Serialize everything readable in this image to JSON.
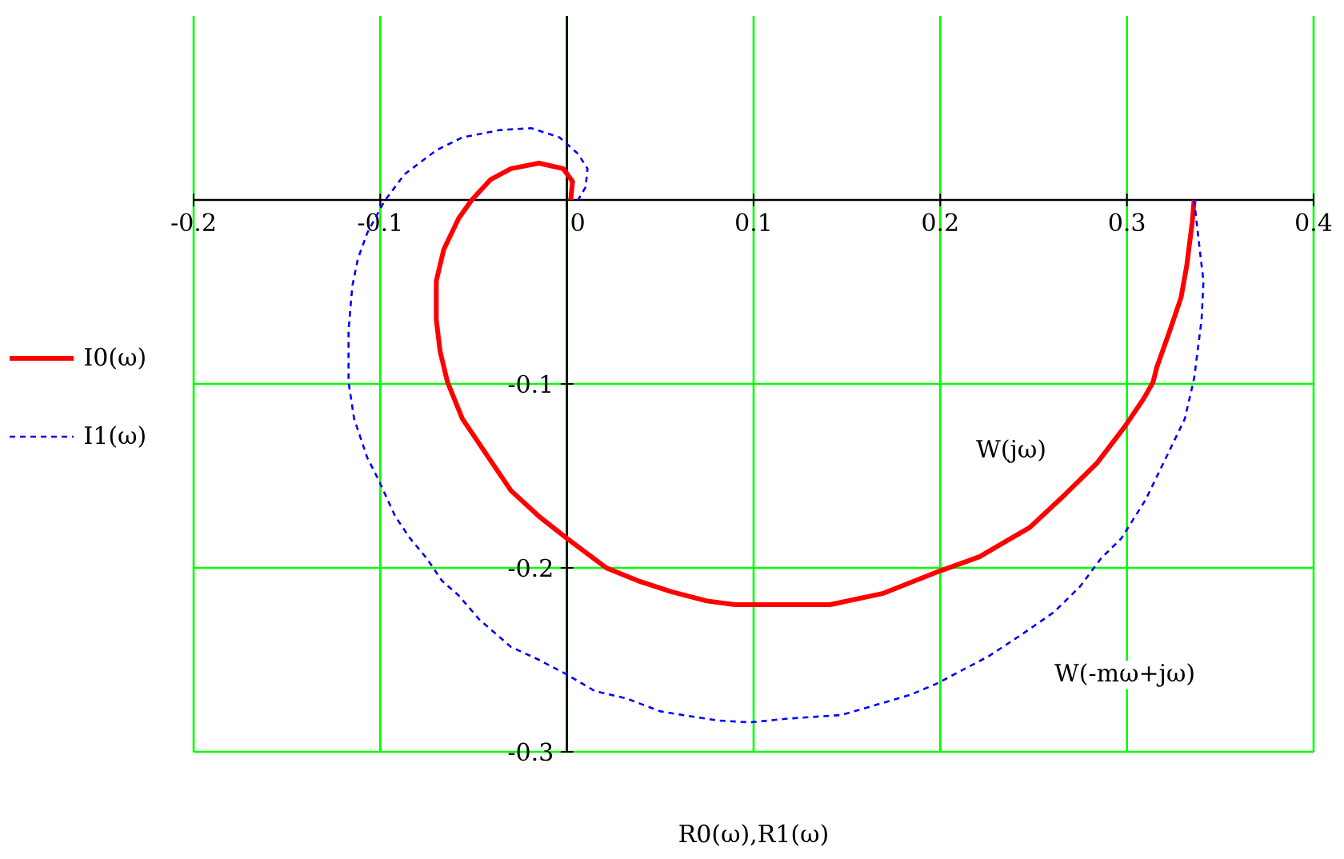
{
  "chart_data": {
    "type": "line",
    "xlabel": "R0(ω),R1(ω)",
    "xlim": [
      -0.2,
      0.4
    ],
    "ylim": [
      -0.3,
      0.1
    ],
    "xticks": [
      -0.2,
      -0.1,
      0,
      0.1,
      0.2,
      0.3,
      0.4
    ],
    "yticks": [
      -0.3,
      -0.2,
      -0.1
    ],
    "grid": true,
    "legend": "left",
    "series": [
      {
        "name": "I0(ω)",
        "color": "#ff0000",
        "line_style": "solid",
        "x": [
          0.336,
          0.335,
          0.332,
          0.329,
          0.323,
          0.316,
          0.314,
          0.309,
          0.299,
          0.284,
          0.267,
          0.248,
          0.221,
          0.199,
          0.169,
          0.141,
          0.09,
          0.075,
          0.056,
          0.038,
          0.021,
          0.0,
          -0.015,
          -0.03,
          -0.044,
          -0.056,
          -0.064,
          -0.068,
          -0.07,
          -0.07,
          -0.066,
          -0.058,
          -0.051,
          -0.041,
          -0.03,
          -0.015,
          -0.002,
          0.003,
          0.002
        ],
        "values": [
          0.0,
          -0.012,
          -0.036,
          -0.053,
          -0.071,
          -0.091,
          -0.099,
          -0.108,
          -0.123,
          -0.143,
          -0.16,
          -0.178,
          -0.194,
          -0.202,
          -0.214,
          -0.22,
          -0.22,
          -0.218,
          -0.213,
          -0.207,
          -0.2,
          -0.184,
          -0.172,
          -0.158,
          -0.137,
          -0.119,
          -0.099,
          -0.082,
          -0.065,
          -0.044,
          -0.027,
          -0.01,
          0.0,
          0.011,
          0.017,
          0.02,
          0.017,
          0.01,
          0.0
        ]
      },
      {
        "name": "I1(ω)",
        "color": "#0000ff",
        "line_style": "dashed",
        "x": [
          0.336,
          0.339,
          0.341,
          0.34,
          0.336,
          0.331,
          0.321,
          0.31,
          0.297,
          0.286,
          0.275,
          0.261,
          0.244,
          0.226,
          0.198,
          0.184,
          0.164,
          0.147,
          0.118,
          0.098,
          0.081,
          0.062,
          0.05,
          0.032,
          0.015,
          0.0,
          -0.015,
          -0.03,
          -0.047,
          -0.058,
          -0.067,
          -0.075,
          -0.084,
          -0.092,
          -0.101,
          -0.107,
          -0.114,
          -0.117,
          -0.117,
          -0.115,
          -0.112,
          -0.107,
          -0.098,
          -0.087,
          -0.07,
          -0.056,
          -0.036,
          -0.019,
          -0.004,
          0.006,
          0.011,
          0.01,
          0.006
        ],
        "values": [
          0.0,
          -0.027,
          -0.044,
          -0.065,
          -0.097,
          -0.119,
          -0.14,
          -0.163,
          -0.184,
          -0.195,
          -0.21,
          -0.224,
          -0.236,
          -0.248,
          -0.263,
          -0.269,
          -0.275,
          -0.28,
          -0.282,
          -0.284,
          -0.283,
          -0.28,
          -0.278,
          -0.271,
          -0.267,
          -0.258,
          -0.25,
          -0.243,
          -0.228,
          -0.215,
          -0.207,
          -0.195,
          -0.184,
          -0.172,
          -0.152,
          -0.14,
          -0.119,
          -0.099,
          -0.071,
          -0.047,
          -0.032,
          -0.018,
          -0.001,
          0.014,
          0.027,
          0.034,
          0.038,
          0.039,
          0.034,
          0.025,
          0.017,
          0.007,
          0.0
        ]
      }
    ],
    "annotations": [
      "W(jω)",
      "W(-mω+jω)"
    ]
  }
}
